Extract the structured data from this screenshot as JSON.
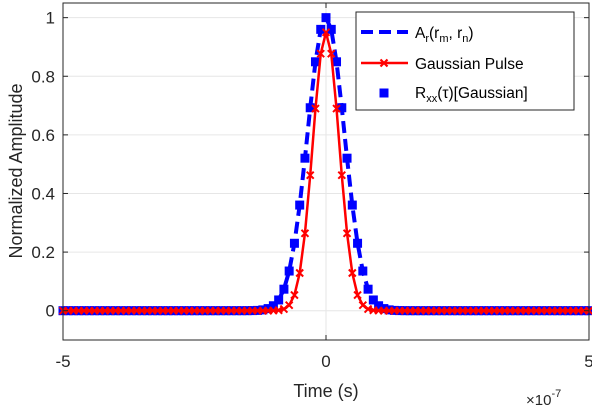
{
  "chart_data": {
    "type": "line",
    "xlabel": "Time (s)",
    "ylabel": "Normalized Amplitude",
    "x_multiplier": "×10",
    "x_multiplier_exponent": "-7",
    "xlim": [
      -5e-07,
      5e-07
    ],
    "ylim": [
      -0.1,
      1.05
    ],
    "grid": true,
    "legend_position": "top-right",
    "x_tick_labels": [
      "-5",
      "0",
      "5"
    ],
    "y_tick_labels": [
      "0",
      "0.2",
      "0.4",
      "0.6",
      "0.8",
      "1"
    ],
    "x_ticks": [
      -5e-07,
      0,
      5e-07
    ],
    "y_ticks": [
      0,
      0.2,
      0.4,
      0.6,
      0.8,
      1
    ],
    "legend": {
      "entries": [
        {
          "main": "A",
          "sub": "r",
          "tail": "(r",
          "sub2": "m",
          "tail2": ", r",
          "sub3": "n",
          "tail3": ")"
        },
        {
          "main": "Gaussian Pulse"
        },
        {
          "main": "R",
          "sub": "xx",
          "tail": "(τ)[Gaussian]"
        }
      ]
    },
    "x_sample_step": 1e-08,
    "series": [
      {
        "style": "dashed-line",
        "color": "#0000ff",
        "peak": 1.0,
        "sigma": 3.5e-08,
        "description_of_form": "gaussian"
      },
      {
        "style": "solid-line-x-markers",
        "color": "#ff0000",
        "peak": 0.95,
        "sigma": 2.5e-08,
        "description_of_form": "gaussian"
      },
      {
        "style": "square-markers",
        "color": "#0000ff",
        "peak": 1.0,
        "sigma": 3.5e-08,
        "description_of_form": "gaussian"
      }
    ],
    "colors": {
      "blue": "#0000ff",
      "red": "#ff0000",
      "grid": "#e6e6e6",
      "axis": "#262626"
    }
  }
}
